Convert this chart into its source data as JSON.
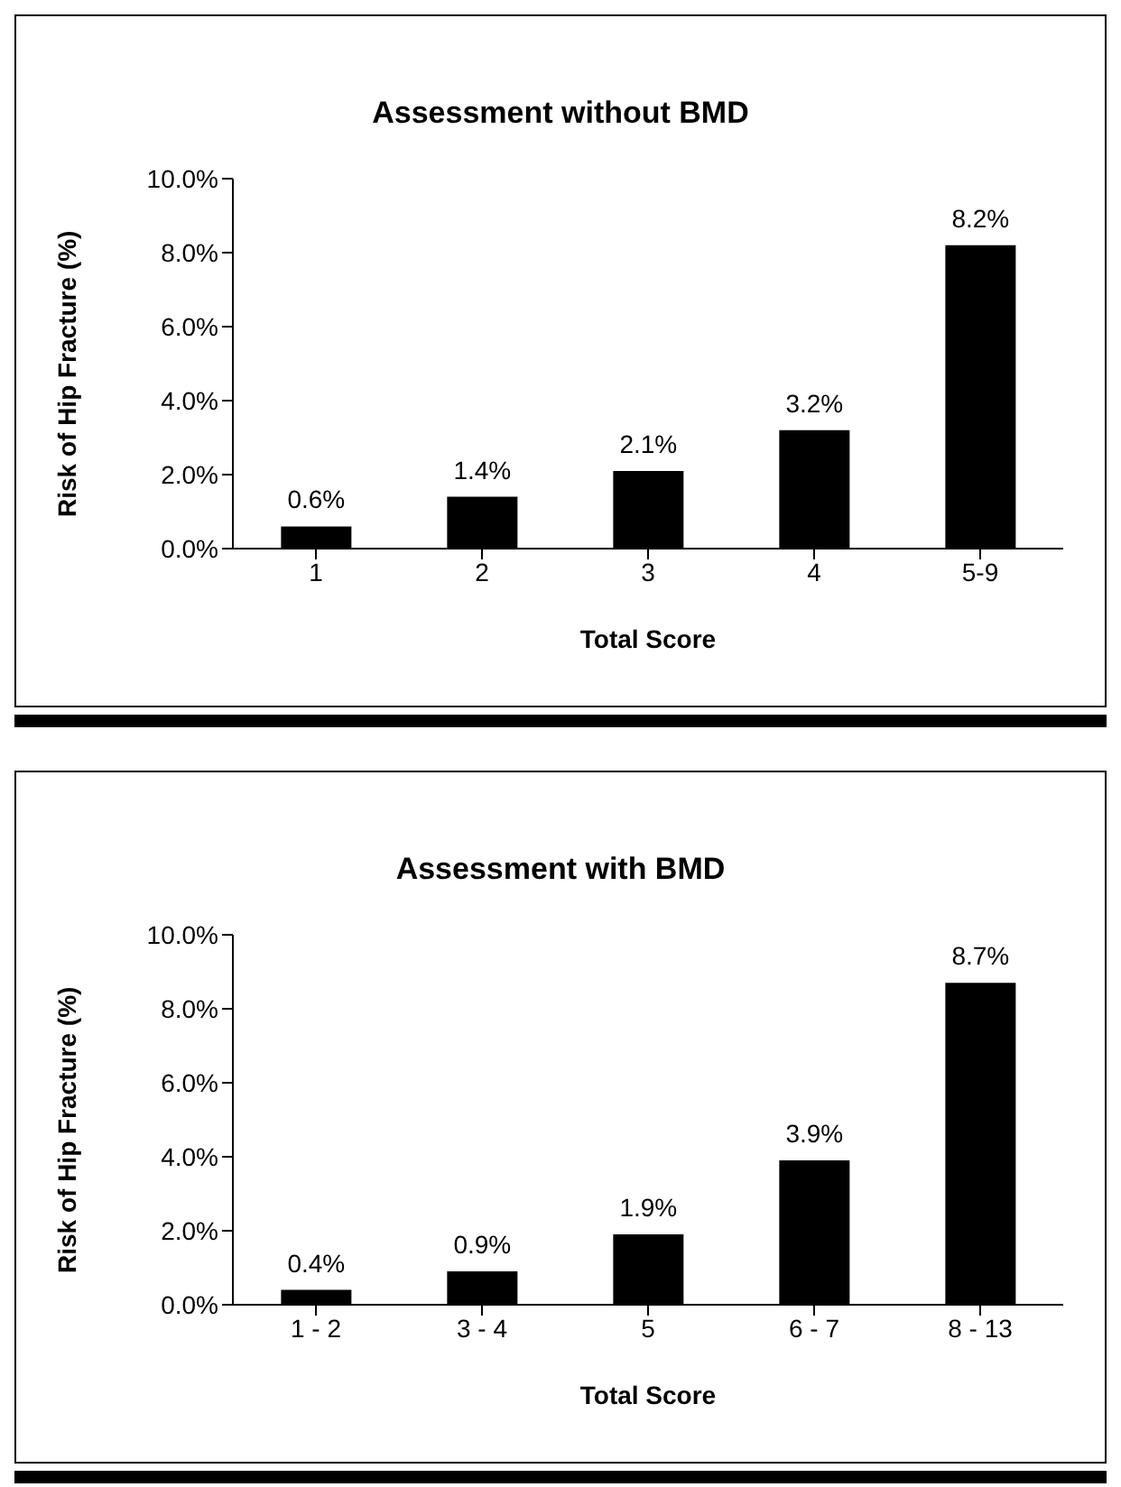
{
  "chart_data": [
    {
      "type": "bar",
      "title": "Assessment without BMD",
      "xlabel": "Total Score",
      "ylabel": "Risk of Hip Fracture (%)",
      "categories": [
        "1",
        "2",
        "3",
        "4",
        "5-9"
      ],
      "values": [
        0.6,
        1.4,
        2.1,
        3.2,
        8.2
      ],
      "color": "#000000",
      "value_labels": [
        "0.6%",
        "1.4%",
        "2.1%",
        "3.2%",
        "8.2%"
      ],
      "ylim": [
        0,
        10
      ],
      "yticks": [
        {
          "value": 0,
          "label": "0.0%"
        },
        {
          "value": 2,
          "label": "2.0%"
        },
        {
          "value": 4,
          "label": "4.0%"
        },
        {
          "value": 6,
          "label": "6.0%"
        },
        {
          "value": 8,
          "label": "8.0%"
        },
        {
          "value": 10,
          "label": "10.0%"
        }
      ],
      "grid": false,
      "legend": false
    },
    {
      "type": "bar",
      "title": "Assessment with BMD",
      "xlabel": "Total Score",
      "ylabel": "Risk of Hip Fracture (%)",
      "categories": [
        "1 - 2",
        "3 - 4",
        "5",
        "6 - 7",
        "8 - 13"
      ],
      "values": [
        0.4,
        0.9,
        1.9,
        3.9,
        8.7
      ],
      "color": "#000000",
      "value_labels": [
        "0.4%",
        "0.9%",
        "1.9%",
        "3.9%",
        "8.7%"
      ],
      "ylim": [
        0,
        10
      ],
      "yticks": [
        {
          "value": 0,
          "label": "0.0%"
        },
        {
          "value": 2,
          "label": "2.0%"
        },
        {
          "value": 4,
          "label": "4.0%"
        },
        {
          "value": 6,
          "label": "6.0%"
        },
        {
          "value": 8,
          "label": "8.0%"
        },
        {
          "value": 10,
          "label": "10.0%"
        }
      ],
      "grid": false,
      "legend": false
    }
  ]
}
